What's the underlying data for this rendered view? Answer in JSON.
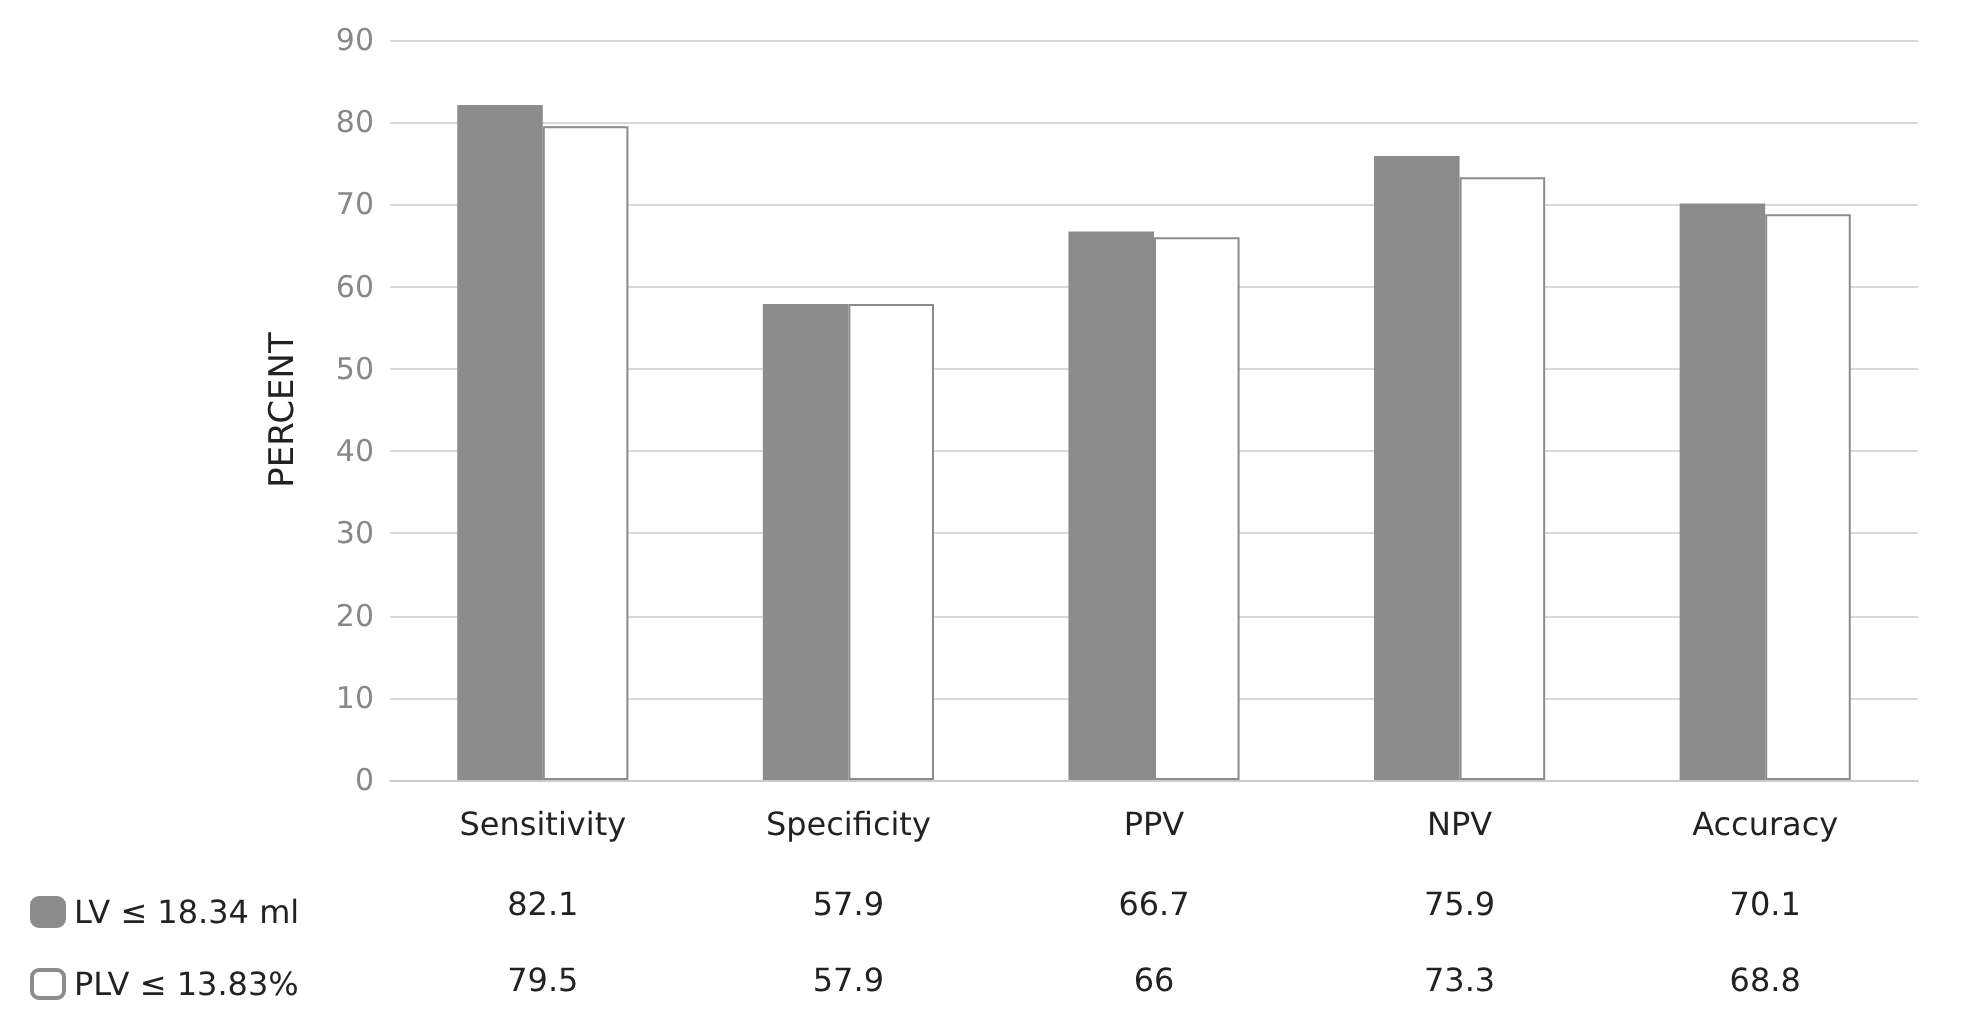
{
  "chart_data": {
    "type": "bar",
    "ylabel": "PERCENT",
    "categories": [
      "Sensitivity",
      "Specificity",
      "PPV",
      "NPV",
      "Accuracy"
    ],
    "series": [
      {
        "name": "LV ≤ 18.34 ml",
        "color": "#8c8c8c",
        "values": [
          82.1,
          57.9,
          66.7,
          75.9,
          70.1
        ]
      },
      {
        "name": "PLV ≤ 13.83%",
        "color": "#ffffff",
        "values": [
          79.5,
          57.9,
          66,
          73.3,
          68.8
        ]
      }
    ],
    "ylim": [
      0,
      90
    ],
    "yticks": [
      0,
      10,
      20,
      30,
      40,
      50,
      60,
      70,
      80,
      90
    ],
    "grid": "y",
    "legend": "bottom left",
    "data_labels": true
  }
}
